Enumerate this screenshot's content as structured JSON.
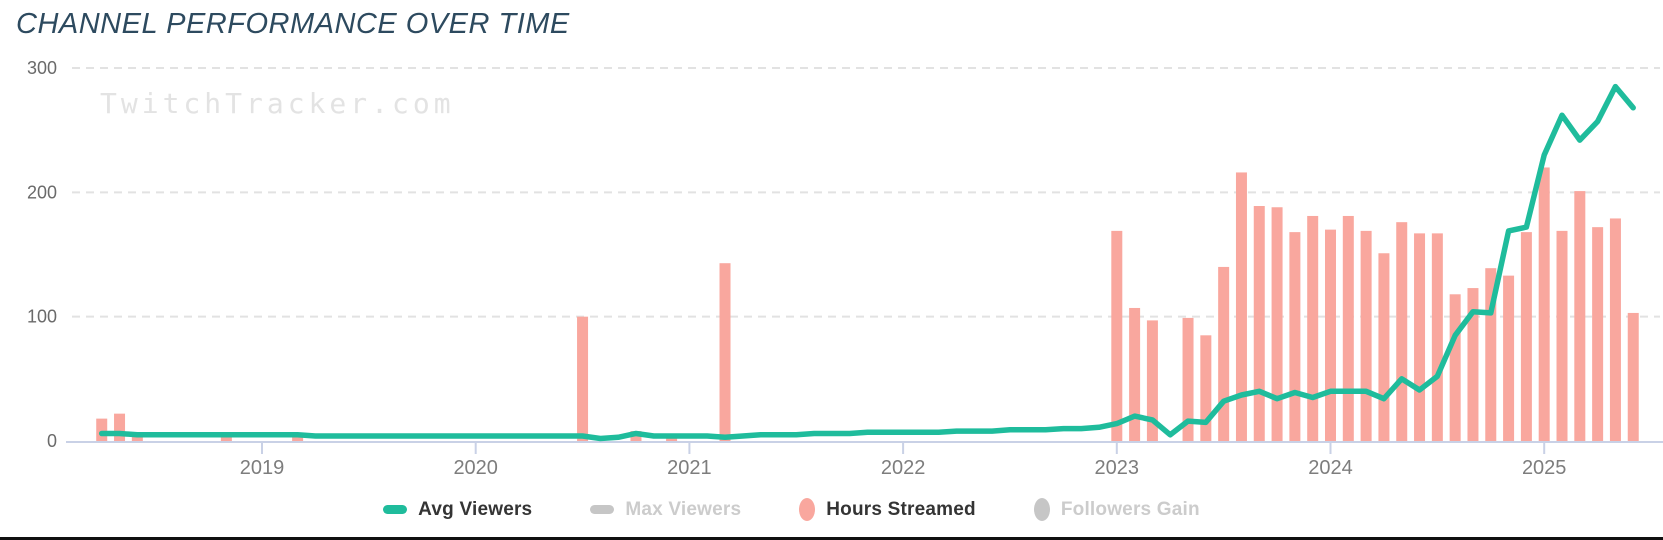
{
  "title": "CHANNEL PERFORMANCE OVER TIME",
  "watermark": "TwitchTracker.com",
  "colors": {
    "title": "#2d4a5f",
    "avg_viewers": "#1fbc9c",
    "hours_streamed": "#f9a79e",
    "disabled_swatch": "#c6c6c6",
    "legend_text": "#343434",
    "legend_text_disabled": "#cccccc",
    "gridline": "#e2e2e2",
    "axis_line": "#c9d1e6",
    "y_label": "#6a6a6a",
    "x_label": "#7d7d7d",
    "watermark": "#e3e3e3",
    "footer_bar": "#101010"
  },
  "legend": {
    "items": [
      {
        "label": "Avg Viewers",
        "shape": "dash",
        "enabled": true,
        "color": "#1fbc9c"
      },
      {
        "label": "Max Viewers",
        "shape": "dash",
        "enabled": false,
        "color": "#c6c6c6"
      },
      {
        "label": "Hours Streamed",
        "shape": "oval",
        "enabled": true,
        "color": "#f9a79e"
      },
      {
        "label": "Followers Gain",
        "shape": "oval",
        "enabled": false,
        "color": "#c6c6c6"
      }
    ]
  },
  "chart_data": {
    "type": "mixed",
    "title": "CHANNEL PERFORMANCE OVER TIME",
    "xlabel": "",
    "ylabel": "",
    "ylim": [
      0,
      300
    ],
    "yticks": [
      0,
      100,
      200,
      300
    ],
    "grid": "horizontal-dashed",
    "legend_position": "bottom-center",
    "x_year_ticks": [
      2019,
      2020,
      2021,
      2022,
      2023,
      2024,
      2025
    ],
    "x": [
      "2018-04",
      "2018-05",
      "2018-06",
      "2018-07",
      "2018-08",
      "2018-09",
      "2018-10",
      "2018-11",
      "2018-12",
      "2019-01",
      "2019-02",
      "2019-03",
      "2019-04",
      "2019-05",
      "2019-06",
      "2019-07",
      "2019-08",
      "2019-09",
      "2019-10",
      "2019-11",
      "2019-12",
      "2020-01",
      "2020-02",
      "2020-03",
      "2020-04",
      "2020-05",
      "2020-06",
      "2020-07",
      "2020-08",
      "2020-09",
      "2020-10",
      "2020-11",
      "2020-12",
      "2021-01",
      "2021-02",
      "2021-03",
      "2021-04",
      "2021-05",
      "2021-06",
      "2021-07",
      "2021-08",
      "2021-09",
      "2021-10",
      "2021-11",
      "2021-12",
      "2022-01",
      "2022-02",
      "2022-03",
      "2022-04",
      "2022-05",
      "2022-06",
      "2022-07",
      "2022-08",
      "2022-09",
      "2022-10",
      "2022-11",
      "2022-12",
      "2023-01",
      "2023-02",
      "2023-03",
      "2023-04",
      "2023-05",
      "2023-06",
      "2023-07",
      "2023-08",
      "2023-09",
      "2023-10",
      "2023-11",
      "2023-12",
      "2024-01",
      "2024-02",
      "2024-03",
      "2024-04",
      "2024-05",
      "2024-06",
      "2024-07",
      "2024-08",
      "2024-09",
      "2024-10",
      "2024-11",
      "2024-12",
      "2025-01",
      "2025-02",
      "2025-03",
      "2025-04",
      "2025-05",
      "2025-06"
    ],
    "series": [
      {
        "name": "Avg Viewers",
        "type": "line",
        "color": "#1fbc9c",
        "values": [
          6,
          6,
          5,
          5,
          5,
          5,
          5,
          5,
          5,
          5,
          5,
          5,
          4,
          4,
          4,
          4,
          4,
          4,
          4,
          4,
          4,
          4,
          4,
          4,
          4,
          4,
          4,
          4,
          2,
          3,
          6,
          4,
          4,
          4,
          4,
          3,
          4,
          5,
          5,
          5,
          6,
          6,
          6,
          7,
          7,
          7,
          7,
          7,
          8,
          8,
          8,
          9,
          9,
          9,
          10,
          10,
          11,
          14,
          20,
          17,
          5,
          16,
          15,
          32,
          37,
          40,
          34,
          39,
          35,
          40,
          40,
          40,
          34,
          50,
          41,
          52,
          85,
          104,
          103,
          169,
          172,
          230,
          262,
          242,
          257,
          285,
          268
        ]
      },
      {
        "name": "Hours Streamed",
        "type": "bar",
        "color": "#f9a79e",
        "values": [
          18,
          22,
          4,
          0,
          0,
          0,
          0,
          3,
          0,
          0,
          0,
          3,
          0,
          0,
          0,
          0,
          0,
          0,
          0,
          0,
          0,
          0,
          0,
          0,
          0,
          0,
          0,
          100,
          0,
          0,
          8,
          0,
          3,
          0,
          0,
          143,
          0,
          0,
          0,
          0,
          0,
          0,
          0,
          0,
          0,
          0,
          0,
          0,
          0,
          0,
          0,
          0,
          0,
          0,
          0,
          0,
          0,
          169,
          107,
          97,
          0,
          99,
          85,
          140,
          216,
          189,
          188,
          168,
          181,
          170,
          181,
          169,
          151,
          176,
          167,
          167,
          118,
          123,
          139,
          133,
          168,
          220,
          169,
          201,
          172,
          179,
          103
        ]
      },
      {
        "name": "Max Viewers",
        "type": "line",
        "color": "#c6c6c6",
        "values": [],
        "hidden": true
      },
      {
        "name": "Followers Gain",
        "type": "line",
        "color": "#c6c6c6",
        "values": [],
        "hidden": true
      }
    ]
  }
}
